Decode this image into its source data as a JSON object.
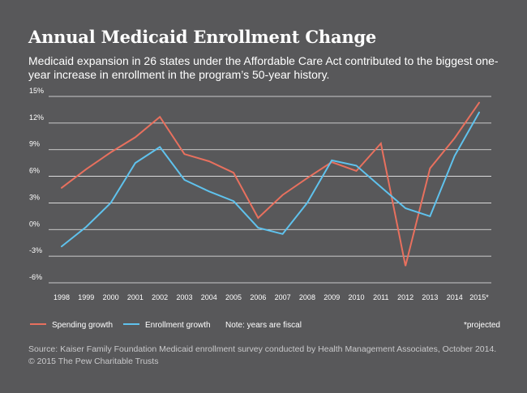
{
  "title": "Annual Medicaid Enrollment Change",
  "subtitle": "Medicaid expansion in 26 states under the Affordable Care Act contributed to the biggest one-year increase in enrollment in the program’s 50-year history.",
  "legend": {
    "spending": "Spending growth",
    "enrollment": "Enrollment growth",
    "note": "Note: years are fiscal",
    "projected": "*projected"
  },
  "source": {
    "line1": "Source: Kaiser Family Foundation Medicaid enrollment survey conducted by Health Management Associates, October 2014.",
    "line2": "© 2015 The Pew Charitable Trusts"
  },
  "colors": {
    "background": "#58585a",
    "spending": "#e8705e",
    "enrollment": "#5fc2ed",
    "grid": "#ffffff"
  },
  "chart_data": {
    "type": "line",
    "title": "Annual Medicaid Enrollment Change",
    "xlabel": "",
    "ylabel": "",
    "categories": [
      "1998",
      "1999",
      "2000",
      "2001",
      "2002",
      "2003",
      "2004",
      "2005",
      "2006",
      "2007",
      "2008",
      "2009",
      "2010",
      "2011",
      "2012",
      "2013",
      "2014",
      "2015*"
    ],
    "yticks": [
      15,
      12,
      9,
      6,
      3,
      0,
      -3,
      -6
    ],
    "ytick_labels": [
      "15%",
      "12%",
      "9%",
      "6%",
      "3%",
      "0%",
      "-3%",
      "-6%"
    ],
    "ylim": [
      -6,
      15
    ],
    "grid": true,
    "legend_position": "bottom",
    "series": [
      {
        "name": "Spending growth",
        "color": "#e8705e",
        "values": [
          4.7,
          6.8,
          8.7,
          10.4,
          12.7,
          8.5,
          7.7,
          6.4,
          1.3,
          3.9,
          5.8,
          7.6,
          6.6,
          9.7,
          -4.1,
          6.9,
          10.3,
          14.3
        ]
      },
      {
        "name": "Enrollment growth",
        "color": "#5fc2ed",
        "values": [
          -1.9,
          0.3,
          3.0,
          7.5,
          9.3,
          5.6,
          4.3,
          3.2,
          0.2,
          -0.5,
          3.0,
          7.8,
          7.2,
          4.8,
          2.4,
          1.5,
          8.3,
          13.2
        ]
      }
    ]
  }
}
